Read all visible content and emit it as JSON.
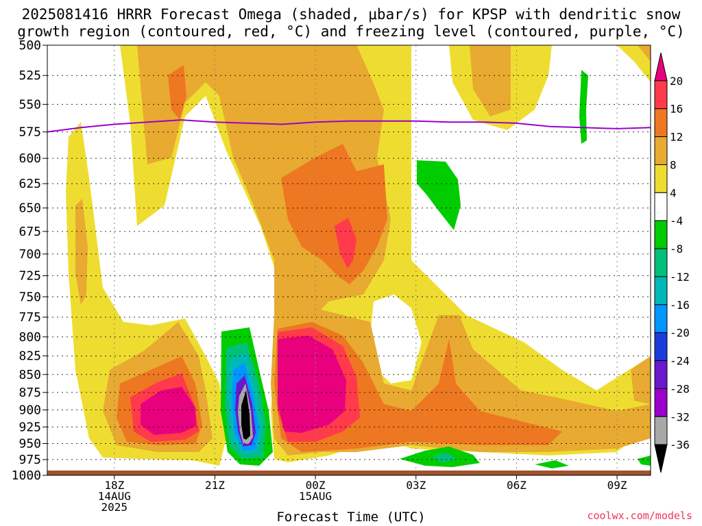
{
  "title_line1": "2025081416 HRRR Forecast Omega (shaded, μbar/s) for KPSP with dendritic snow",
  "title_line2": "growth region (contoured, red, °C) and freezing level (contoured, purple, °C)",
  "watermark": "coolwx.com/models",
  "chart_data": {
    "type": "heatmap",
    "title": "2025081416 HRRR Forecast Omega (shaded, μbar/s) for KPSP with dendritic snow growth region (contoured, red, °C) and freezing level (contoured, purple, °C)",
    "xlabel": "Forecast Time (UTC)",
    "ylabel": "",
    "x_ticks": [
      {
        "hour": 18,
        "label": "18Z",
        "date": "14AUG",
        "year": "2025"
      },
      {
        "hour": 21,
        "label": "21Z"
      },
      {
        "hour": 24,
        "label": "00Z",
        "date": "15AUG"
      },
      {
        "hour": 27,
        "label": "03Z"
      },
      {
        "hour": 30,
        "label": "06Z"
      },
      {
        "hour": 33,
        "label": "09Z"
      }
    ],
    "xlim": [
      16,
      34
    ],
    "y_ticks": [
      500,
      525,
      550,
      575,
      600,
      625,
      650,
      675,
      700,
      725,
      750,
      775,
      800,
      825,
      850,
      875,
      900,
      925,
      950,
      975,
      1000
    ],
    "ylim": [
      500,
      1000
    ],
    "y_scale": "log (pressure, hPa)",
    "grid": true,
    "colorbar": {
      "labels": [
        "20",
        "16",
        "12",
        "8",
        "4",
        "-4",
        "-8",
        "-12",
        "-16",
        "-20",
        "-24",
        "-28",
        "-32",
        "-36"
      ],
      "colors": [
        "#e8007d",
        "#ff3a4a",
        "#ee7722",
        "#e8aa30",
        "#eedd30",
        "#ffffff",
        "#00cc00",
        "#00c07a",
        "#00b8b8",
        "#0096ff",
        "#1a3cdd",
        "#6a18cc",
        "#9a00cc",
        "#a8a8a8",
        "#000000"
      ]
    },
    "series": [
      {
        "name": "freezing level",
        "x": [
          16.0,
          17.0,
          18.0,
          19.0,
          20.0,
          21.0,
          22.0,
          23.0,
          24.0,
          25.0,
          26.0,
          27.0,
          28.0,
          29.0,
          30.0,
          31.0,
          32.0,
          33.0,
          34.0
        ],
        "y": [
          575,
          571,
          568,
          566,
          564,
          566,
          567,
          568,
          566,
          565,
          565,
          565,
          566,
          566,
          567,
          570,
          571,
          572,
          571
        ],
        "color": "#9900cc"
      }
    ],
    "shaded_regions": [
      {
        "level": "4 to 8",
        "color": "#eedd30"
      },
      {
        "level": "8 to 12",
        "color": "#e8aa30"
      },
      {
        "level": "12 to 16",
        "color": "#ee7722"
      },
      {
        "level": "16 to 20",
        "color": "#ff3a4a"
      },
      {
        "level": ">20",
        "color": "#e8007d"
      },
      {
        "level": "-4 to -8",
        "color": "#00cc00"
      },
      {
        "level": "-8 to -12",
        "color": "#00c07a"
      },
      {
        "level": "-12 to -16",
        "color": "#00b8b8"
      },
      {
        "level": "-16 to -20",
        "color": "#0096ff"
      },
      {
        "level": "-24 to -28",
        "color": "#6a18cc"
      },
      {
        "level": "-32 to -36",
        "color": "#a8a8a8"
      },
      {
        "level": "<-36",
        "color": "#000000"
      }
    ],
    "ground_color": "#a0522d"
  }
}
